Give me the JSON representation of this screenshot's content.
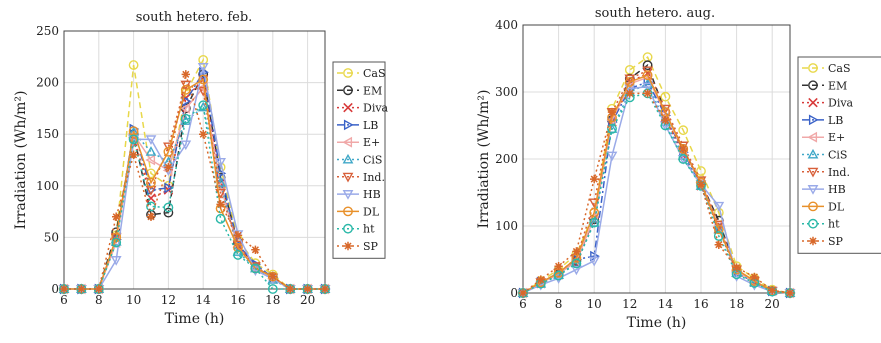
{
  "chart_data": [
    {
      "type": "line",
      "title": "south hetero. feb.",
      "xlabel": "Time (h)",
      "ylabel": "Irradiation (Wh/m²)",
      "xlim": [
        6,
        21
      ],
      "ylim": [
        0,
        250
      ],
      "xticks": [
        "6",
        "8",
        "10",
        "12",
        "14",
        "16",
        "18",
        "20"
      ],
      "yticks": [
        "0",
        "50",
        "100",
        "150",
        "200",
        "250"
      ],
      "grid": true,
      "legend_position": "right",
      "x": [
        6,
        7,
        8,
        9,
        10,
        11,
        12,
        13,
        14,
        15,
        16,
        17,
        18,
        19,
        20,
        21
      ],
      "series": [
        {
          "name": "CaS",
          "color": "#e8d84a",
          "marker": "circle",
          "dash": "dashed",
          "values": [
            0,
            0,
            0,
            52,
            217,
            112,
            100,
            190,
            222,
            118,
            48,
            25,
            14,
            0,
            0,
            0
          ]
        },
        {
          "name": "EM",
          "color": "#333333",
          "marker": "circle",
          "dash": "dashed",
          "values": [
            0,
            0,
            0,
            55,
            150,
            72,
            74,
            175,
            208,
            108,
            45,
            20,
            12,
            0,
            0,
            0
          ]
        },
        {
          "name": "Diva",
          "color": "#d83a3a",
          "marker": "x",
          "dash": "dotted",
          "values": [
            0,
            0,
            0,
            50,
            148,
            88,
            96,
            185,
            203,
            102,
            42,
            22,
            10,
            0,
            0,
            0
          ]
        },
        {
          "name": "LB",
          "color": "#3a62c8",
          "marker": "triangle-right",
          "dash": "dashdot",
          "values": [
            0,
            0,
            0,
            48,
            155,
            96,
            98,
            182,
            210,
            112,
            43,
            24,
            11,
            0,
            0,
            0
          ]
        },
        {
          "name": "E+",
          "color": "#f0a8a8",
          "marker": "triangle-left",
          "dash": "solid",
          "values": [
            0,
            0,
            0,
            45,
            150,
            125,
            115,
            175,
            195,
            100,
            40,
            20,
            10,
            0,
            0,
            0
          ]
        },
        {
          "name": "CiS",
          "color": "#40a8c8",
          "marker": "triangle-up",
          "dash": "dotted",
          "values": [
            0,
            0,
            0,
            46,
            152,
            133,
            123,
            163,
            176,
            103,
            36,
            20,
            9,
            0,
            0,
            0
          ]
        },
        {
          "name": "Ind.",
          "color": "#d8603a",
          "marker": "triangle-down",
          "dash": "dotted",
          "values": [
            0,
            0,
            0,
            50,
            143,
            96,
            138,
            198,
            192,
            93,
            43,
            22,
            11,
            0,
            0,
            0
          ]
        },
        {
          "name": "HB",
          "color": "#9aaae8",
          "marker": "triangle-down",
          "dash": "solid",
          "values": [
            0,
            0,
            0,
            28,
            145,
            145,
            115,
            140,
            215,
            123,
            53,
            18,
            10,
            0,
            0,
            0
          ]
        },
        {
          "name": "DL",
          "color": "#e8902a",
          "marker": "circle",
          "dash": "solid",
          "values": [
            0,
            0,
            0,
            50,
            153,
            103,
            133,
            193,
            203,
            78,
            40,
            20,
            12,
            0,
            0,
            0
          ]
        },
        {
          "name": "ht",
          "color": "#2ab8a8",
          "marker": "circle",
          "dash": "dotted",
          "values": [
            0,
            0,
            0,
            45,
            145,
            80,
            79,
            165,
            178,
            68,
            33,
            20,
            0,
            0,
            0,
            0
          ]
        },
        {
          "name": "SP",
          "color": "#d8682a",
          "marker": "star",
          "dash": "dotted",
          "values": [
            0,
            0,
            0,
            70,
            130,
            70,
            118,
            208,
            150,
            82,
            52,
            38,
            12,
            0,
            0,
            0
          ]
        }
      ]
    },
    {
      "type": "line",
      "title": "south hetero. aug.",
      "xlabel": "Time (h)",
      "ylabel": "Irradiation (Wh/m²)",
      "xlim": [
        6,
        21
      ],
      "ylim": [
        0,
        400
      ],
      "xticks": [
        "6",
        "8",
        "10",
        "12",
        "14",
        "16",
        "18",
        "20"
      ],
      "yticks": [
        "0",
        "100",
        "200",
        "300",
        "400"
      ],
      "grid": true,
      "legend_position": "right",
      "x": [
        6,
        7,
        8,
        9,
        10,
        11,
        12,
        13,
        14,
        15,
        16,
        17,
        18,
        19,
        20,
        21
      ],
      "series": [
        {
          "name": "CaS",
          "color": "#e8d84a",
          "marker": "circle",
          "dash": "dashed",
          "values": [
            0,
            18,
            35,
            58,
            120,
            275,
            333,
            352,
            293,
            243,
            182,
            120,
            40,
            22,
            5,
            0
          ]
        },
        {
          "name": "EM",
          "color": "#333333",
          "marker": "circle",
          "dash": "dashed",
          "values": [
            0,
            15,
            28,
            48,
            110,
            258,
            320,
            340,
            270,
            215,
            165,
            108,
            33,
            18,
            3,
            0
          ]
        },
        {
          "name": "Diva",
          "color": "#d83a3a",
          "marker": "x",
          "dash": "dotted",
          "values": [
            0,
            14,
            27,
            46,
            108,
            255,
            315,
            328,
            262,
            205,
            160,
            95,
            30,
            16,
            3,
            0
          ]
        },
        {
          "name": "LB",
          "color": "#3a62c8",
          "marker": "triangle-right",
          "dash": "dashdot",
          "values": [
            0,
            16,
            30,
            50,
            55,
            255,
            305,
            315,
            265,
            210,
            162,
            100,
            32,
            17,
            3,
            0
          ]
        },
        {
          "name": "E+",
          "color": "#f0a8a8",
          "marker": "triangle-left",
          "dash": "solid",
          "values": [
            0,
            15,
            28,
            48,
            112,
            258,
            312,
            322,
            268,
            212,
            165,
            100,
            32,
            17,
            3,
            0
          ]
        },
        {
          "name": "CiS",
          "color": "#40a8c8",
          "marker": "triangle-up",
          "dash": "dotted",
          "values": [
            0,
            14,
            27,
            45,
            105,
            245,
            300,
            312,
            255,
            205,
            160,
            95,
            30,
            16,
            3,
            0
          ]
        },
        {
          "name": "Ind.",
          "color": "#d8603a",
          "marker": "triangle-down",
          "dash": "dotted",
          "values": [
            0,
            16,
            30,
            52,
            135,
            270,
            320,
            332,
            275,
            220,
            168,
            102,
            35,
            18,
            3,
            0
          ]
        },
        {
          "name": "HB",
          "color": "#9aaae8",
          "marker": "triangle-down",
          "dash": "solid",
          "values": [
            0,
            12,
            22,
            35,
            48,
            205,
            305,
            308,
            250,
            200,
            162,
            130,
            25,
            12,
            2,
            0
          ]
        },
        {
          "name": "DL",
          "color": "#e8902a",
          "marker": "circle",
          "dash": "solid",
          "values": [
            0,
            16,
            30,
            52,
            120,
            262,
            315,
            325,
            270,
            215,
            165,
            95,
            35,
            18,
            3,
            0
          ]
        },
        {
          "name": "ht",
          "color": "#2ab8a8",
          "marker": "circle",
          "dash": "dotted",
          "values": [
            0,
            14,
            26,
            44,
            105,
            245,
            292,
            298,
            250,
            200,
            160,
            85,
            28,
            15,
            2,
            0
          ]
        },
        {
          "name": "SP",
          "color": "#d8682a",
          "marker": "star",
          "dash": "dotted",
          "values": [
            0,
            20,
            40,
            62,
            170,
            270,
            298,
            298,
            258,
            215,
            162,
            72,
            38,
            24,
            4,
            0
          ]
        }
      ]
    }
  ]
}
